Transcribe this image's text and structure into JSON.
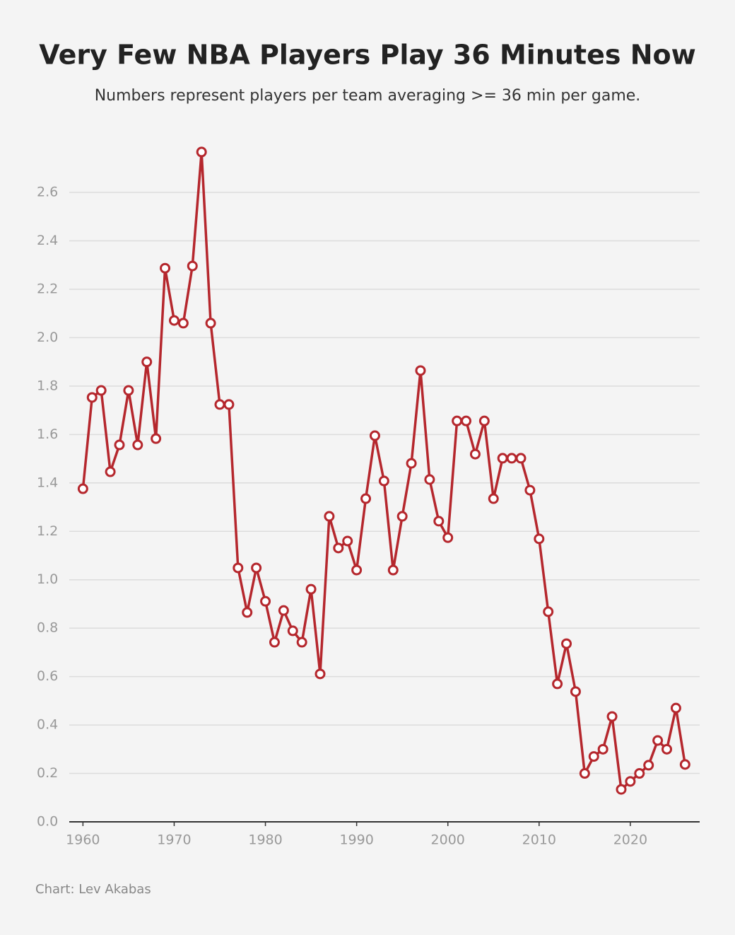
{
  "chart_data": {
    "type": "line",
    "title": "Very Few NBA Players Play 36 Minutes Now",
    "subtitle": "Numbers represent players per team averaging >= 36 min per game.",
    "source": "Chart: Lev Akabas",
    "x": [
      1960,
      1961,
      1962,
      1963,
      1964,
      1965,
      1966,
      1967,
      1968,
      1969,
      1970,
      1971,
      1972,
      1973,
      1974,
      1975,
      1976,
      1977,
      1978,
      1979,
      1980,
      1981,
      1982,
      1983,
      1984,
      1985,
      1986,
      1987,
      1988,
      1989,
      1990,
      1991,
      1992,
      1993,
      1994,
      1995,
      1996,
      1997,
      1998,
      1999,
      2000,
      2001,
      2002,
      2003,
      2004,
      2005,
      2006,
      2007,
      2008,
      2009,
      2010,
      2011,
      2012,
      2013,
      2014,
      2015,
      2016,
      2017,
      2018,
      2019,
      2020,
      2021,
      2022,
      2023,
      2024,
      2025,
      2026
    ],
    "series": [
      {
        "name": "Players per team",
        "color": "#b5272d",
        "values": [
          1.376,
          1.753,
          1.782,
          1.446,
          1.557,
          1.782,
          1.557,
          1.9,
          1.583,
          2.287,
          2.071,
          2.06,
          2.296,
          2.767,
          2.06,
          1.724,
          1.724,
          1.049,
          0.865,
          1.049,
          0.911,
          0.742,
          0.873,
          0.789,
          0.742,
          0.961,
          0.611,
          1.262,
          1.131,
          1.16,
          1.04,
          1.335,
          1.595,
          1.408,
          1.04,
          1.262,
          1.481,
          1.864,
          1.414,
          1.242,
          1.174,
          1.656,
          1.656,
          1.519,
          1.656,
          1.335,
          1.502,
          1.502,
          1.502,
          1.37,
          1.169,
          0.868,
          0.57,
          0.736,
          0.538,
          0.2,
          0.27,
          0.3,
          0.435,
          0.134,
          0.167,
          0.2,
          0.234,
          0.336,
          0.3,
          0.47,
          0.237
        ]
      }
    ],
    "xlim": [
      1958.5,
      2027.6
    ],
    "xticks": [
      1960,
      1970,
      1980,
      1990,
      2000,
      2010,
      2020
    ],
    "ylim": [
      0,
      2.8
    ],
    "yticks": [
      {
        "value": 0,
        "label": "0.0"
      },
      0.2,
      0.4,
      0.6,
      0.8,
      {
        "value": 1,
        "label": "1.0"
      },
      1.2,
      1.4,
      1.6,
      1.8,
      {
        "value": 2,
        "label": "2.0"
      },
      2.2,
      2.4,
      2.6
    ],
    "grid": true
  }
}
